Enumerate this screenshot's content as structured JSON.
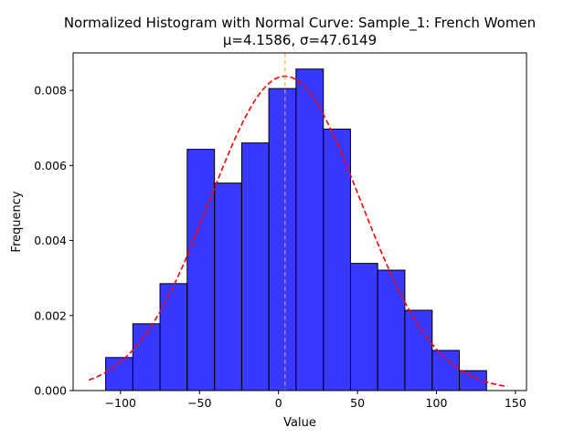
{
  "chart_data": {
    "type": "bar",
    "title": "Normalized Histogram with Normal Curve: Sample_1: French Women",
    "subtitle": "μ=4.1586, σ=47.6149",
    "xlabel": "Value",
    "ylabel": "Frequency",
    "xlim": [
      -130,
      157
    ],
    "ylim": [
      0,
      0.009
    ],
    "x_ticks": [
      -100,
      -50,
      0,
      50,
      100,
      150
    ],
    "y_ticks": [
      0.0,
      0.002,
      0.004,
      0.006,
      0.008
    ],
    "x_tick_labels": [
      "−100",
      "−50",
      "0",
      "50",
      "100",
      "150"
    ],
    "y_tick_labels": [
      "0.000",
      "0.002",
      "0.004",
      "0.006",
      "0.008"
    ],
    "bins": [
      {
        "x0": -109.4,
        "x1": -92.2,
        "value": 0.00088
      },
      {
        "x0": -92.2,
        "x1": -75.0,
        "value": 0.00178
      },
      {
        "x0": -75.0,
        "x1": -57.8,
        "value": 0.00285
      },
      {
        "x0": -57.8,
        "x1": -40.5,
        "value": 0.00643
      },
      {
        "x0": -40.5,
        "x1": -23.3,
        "value": 0.00553
      },
      {
        "x0": -23.3,
        "x1": -6.1,
        "value": 0.0066
      },
      {
        "x0": -6.1,
        "x1": 11.1,
        "value": 0.00805
      },
      {
        "x0": 11.1,
        "x1": 28.4,
        "value": 0.00857
      },
      {
        "x0": 28.4,
        "x1": 45.6,
        "value": 0.00697
      },
      {
        "x0": 45.6,
        "x1": 62.8,
        "value": 0.00339
      },
      {
        "x0": 62.8,
        "x1": 80.0,
        "value": 0.00321
      },
      {
        "x0": 80.0,
        "x1": 97.3,
        "value": 0.00214
      },
      {
        "x0": 97.3,
        "x1": 114.5,
        "value": 0.00107
      },
      {
        "x0": 114.5,
        "x1": 131.7,
        "value": 0.00053
      }
    ],
    "normal_curve": {
      "mu": 4.1586,
      "sigma": 47.6149,
      "x_range": [
        -120,
        145
      ],
      "color": "#ff0000",
      "style": "dashed"
    },
    "mean_line": {
      "x": 4.1586,
      "color": "#ffa500",
      "style": "dashed"
    },
    "bar_color": "#0000ff",
    "bar_edge_color": "#000000",
    "grid": false,
    "legend": "none"
  }
}
